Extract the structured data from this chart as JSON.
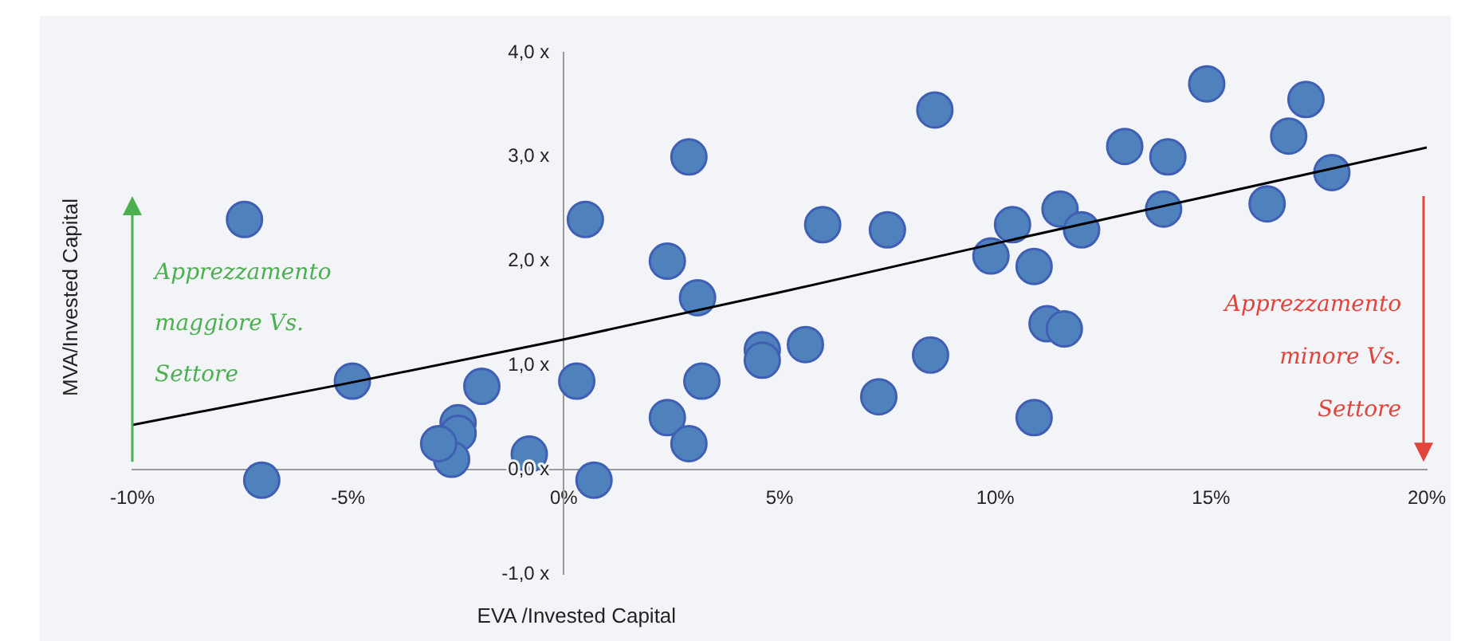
{
  "chart_data": {
    "type": "scatter",
    "xlabel": "EVA /Invested Capital",
    "ylabel": "MVA/Invested Capital",
    "xlim": [
      -10,
      20
    ],
    "ylim": [
      -1,
      4
    ],
    "grid": false,
    "legend": false,
    "marker": "circle",
    "xticks": [
      {
        "value": -10,
        "label": "-10%"
      },
      {
        "value": -5,
        "label": "-5%"
      },
      {
        "value": 0,
        "label": "0%"
      },
      {
        "value": 5,
        "label": "5%"
      },
      {
        "value": 10,
        "label": "10%"
      },
      {
        "value": 15,
        "label": "15%"
      },
      {
        "value": 20,
        "label": "20%"
      }
    ],
    "yticks": [
      {
        "value": -1,
        "label": "-1,0 x"
      },
      {
        "value": 0,
        "label": "0,0 x"
      },
      {
        "value": 1,
        "label": "1,0 x"
      },
      {
        "value": 2,
        "label": "2,0 x"
      },
      {
        "value": 3,
        "label": "3,0 x"
      },
      {
        "value": 4,
        "label": "4,0 x"
      }
    ],
    "annotations": [
      "Apprezzamento maggiore Vs. Settore",
      "Apprezzamento minore Vs. Settore"
    ],
    "series": [
      {
        "type": "scatter",
        "color": "#4f81bd",
        "x": [
          -7.4,
          -7.0,
          -4.9,
          -1.9,
          -2.45,
          -2.45,
          -2.6,
          -2.9,
          -0.8,
          0.3,
          0.5,
          0.7,
          2.4,
          2.4,
          2.9,
          3.1,
          2.9,
          3.2,
          4.6,
          4.6,
          5.6,
          6.0,
          8.6,
          7.5,
          7.3,
          8.5,
          9.9,
          10.4,
          10.9,
          10.9,
          11.2,
          11.6,
          11.5,
          12.0,
          13.0,
          14.0,
          13.9,
          14.9,
          16.3,
          16.8,
          17.2,
          17.8
        ],
        "values": [
          2.4,
          -0.1,
          0.85,
          0.8,
          0.45,
          0.35,
          0.1,
          0.25,
          0.15,
          0.85,
          2.4,
          -0.1,
          2.0,
          0.5,
          3.0,
          1.65,
          0.25,
          0.85,
          1.15,
          1.05,
          1.2,
          2.35,
          3.45,
          2.3,
          0.7,
          1.1,
          2.05,
          2.35,
          1.95,
          0.5,
          1.4,
          1.35,
          2.5,
          2.3,
          3.1,
          3.0,
          2.5,
          3.7,
          2.55,
          3.2,
          3.55,
          2.85
        ]
      },
      {
        "type": "line",
        "color": "#000000",
        "marker": "none",
        "x": [
          -10,
          -5,
          0,
          5,
          10,
          15,
          20
        ],
        "values": [
          0.43,
          0.83,
          1.25,
          1.7,
          2.17,
          2.63,
          3.09
        ]
      }
    ]
  }
}
